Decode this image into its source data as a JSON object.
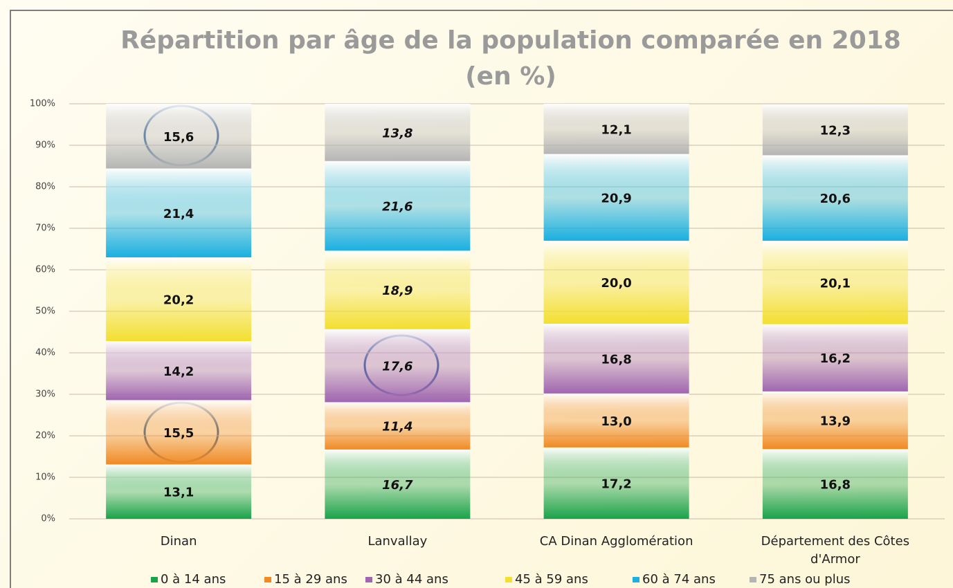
{
  "chart_data": {
    "type": "stacked_bar",
    "title": "Répartition par âge de la population comparée en 2018",
    "subtitle": "(en %)",
    "categories": [
      "Dinan",
      "Lanvallay",
      "CA Dinan Agglomération",
      "Département des Côtes d'Armor"
    ],
    "series": [
      {
        "name": "0 à 14 ans",
        "color": "#1aa34a",
        "values": [
          13.1,
          16.7,
          17.2,
          16.8
        ],
        "value_labels": [
          "13,1",
          "16,7",
          "17,2",
          "16,8"
        ]
      },
      {
        "name": "15 à 29 ans",
        "color": "#f08a24",
        "values": [
          15.5,
          11.4,
          13.0,
          13.9
        ],
        "value_labels": [
          "15,5",
          "11,4",
          "13,0",
          "13,9"
        ]
      },
      {
        "name": "30 à 44 ans",
        "color": "#a066b0",
        "values": [
          14.2,
          17.6,
          16.8,
          16.2
        ],
        "value_labels": [
          "14,2",
          "17,6",
          "16,8",
          "16,2"
        ]
      },
      {
        "name": "45 à 59 ans",
        "color": "#f3df30",
        "values": [
          20.2,
          18.9,
          20.0,
          20.1
        ],
        "value_labels": [
          "20,2",
          "18,9",
          "20,0",
          "20,1"
        ]
      },
      {
        "name": "60 à 74 ans",
        "color": "#1ab0e0",
        "values": [
          21.4,
          21.6,
          20.9,
          20.6
        ],
        "value_labels": [
          "21,4",
          "21,6",
          "20,9",
          "20,6"
        ]
      },
      {
        "name": "75 ans ou plus",
        "color": "#b5b5b5",
        "values": [
          15.6,
          13.8,
          12.1,
          12.3
        ],
        "value_labels": [
          "15,6",
          "13,8",
          "12,1",
          "12,3"
        ]
      }
    ],
    "ylim": [
      0,
      100
    ],
    "yticks": [
      {
        "value": 0,
        "label": "0%"
      },
      {
        "value": 10,
        "label": "10%"
      },
      {
        "value": 20,
        "label": "20%"
      },
      {
        "value": 30,
        "label": "30%"
      },
      {
        "value": 40,
        "label": "40%"
      },
      {
        "value": 50,
        "label": "50%"
      },
      {
        "value": 60,
        "label": "60%"
      },
      {
        "value": 70,
        "label": "70%"
      },
      {
        "value": 80,
        "label": "80%"
      },
      {
        "value": 90,
        "label": "90%"
      },
      {
        "value": 100,
        "label": "100%"
      }
    ],
    "grid": true,
    "legend": "bottom"
  }
}
